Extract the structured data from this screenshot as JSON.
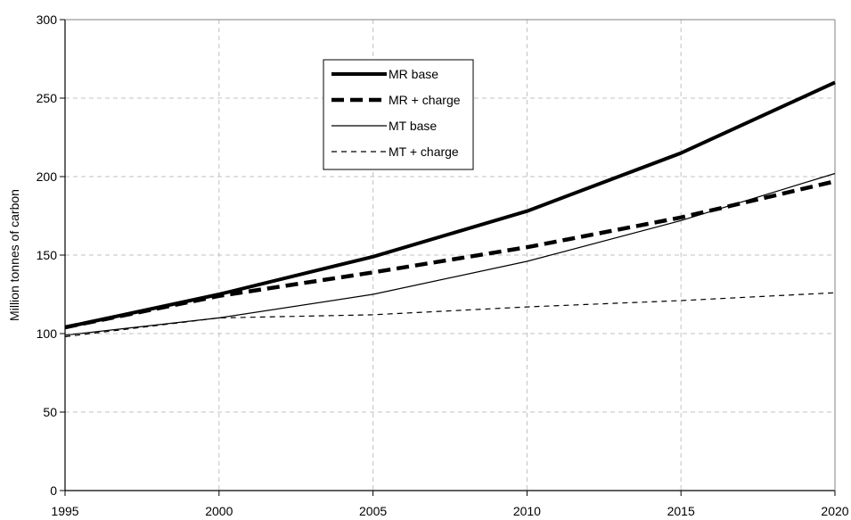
{
  "chart_data": {
    "type": "line",
    "title": "",
    "xlabel": "",
    "ylabel": "Million tonnes of carbon",
    "x": [
      1995,
      2000,
      2005,
      2010,
      2015,
      2020
    ],
    "xlim": [
      1995,
      2020
    ],
    "ylim": [
      0,
      300
    ],
    "x_ticks": [
      1995,
      2000,
      2005,
      2010,
      2015,
      2020
    ],
    "y_ticks": [
      0,
      50,
      100,
      150,
      200,
      250,
      300
    ],
    "grid": true,
    "legend_position": "top-center",
    "series": [
      {
        "name": "MR base",
        "values": [
          104,
          125,
          149,
          178,
          215,
          260
        ],
        "color": "#000000",
        "style": "solid-thick"
      },
      {
        "name": "MR + charge",
        "values": [
          104,
          124,
          139,
          155,
          174,
          197
        ],
        "color": "#000000",
        "style": "dashed-thick"
      },
      {
        "name": "MT base",
        "values": [
          99,
          110,
          125,
          146,
          172,
          202
        ],
        "color": "#000000",
        "style": "solid-thin"
      },
      {
        "name": "MT + charge",
        "values": [
          98,
          110,
          112,
          117,
          121,
          126
        ],
        "color": "#000000",
        "style": "dashed-thin"
      }
    ]
  }
}
